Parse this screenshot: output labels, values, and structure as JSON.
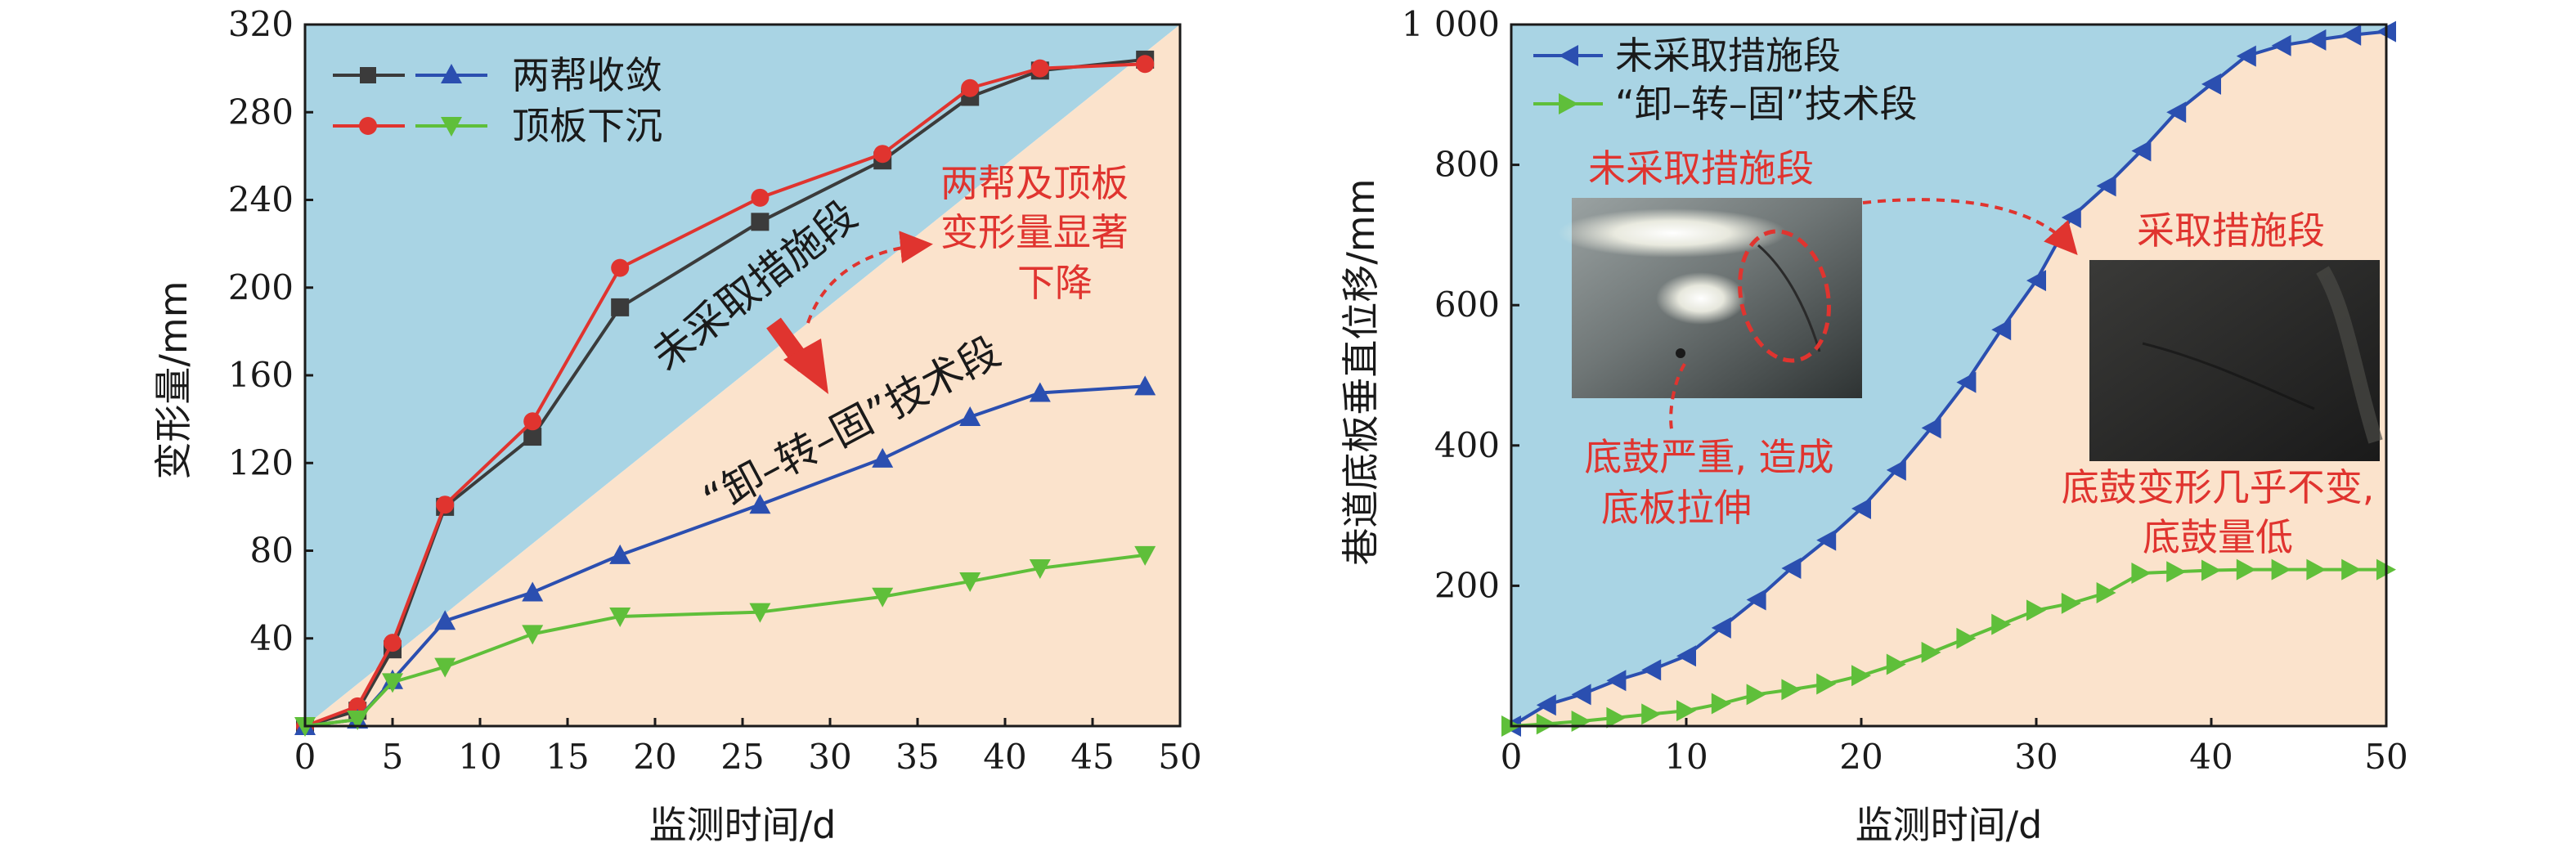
{
  "colors": {
    "blue_region": "#a9d4e4",
    "tan_region": "#fbe3cc",
    "series_dark": "#3b3b3b",
    "series_red": "#e0342f",
    "series_blue": "#2b4fb0",
    "series_green": "#5fbf3a",
    "annotation": "#e0342f",
    "arrow": "#e0342f"
  },
  "chart_data": [
    {
      "type": "line",
      "xlabel": "监测时间/d",
      "ylabel": "变形量/mm",
      "xlim": [
        0,
        50
      ],
      "ylim": [
        0,
        320
      ],
      "xticks": [
        "0",
        "5",
        "10",
        "15",
        "20",
        "25",
        "30",
        "35",
        "40",
        "45",
        "50"
      ],
      "yticks": [
        "40",
        "80",
        "120",
        "160",
        "200",
        "240",
        "280",
        "320"
      ],
      "legend": {
        "position": "top-left",
        "group_labels": [
          "两帮收敛",
          "顶板下沉"
        ]
      },
      "regions": [
        "未采取措施段",
        "“卸–转–固”技术段"
      ],
      "annotation": [
        "两帮及顶板",
        "变形量显著",
        "下降"
      ],
      "series": [
        {
          "marker": "square",
          "x": [
            0,
            3,
            5,
            8,
            13,
            18,
            26,
            33,
            38,
            42,
            48
          ],
          "y": [
            0,
            7,
            35,
            100,
            132,
            191,
            230,
            258,
            287,
            299,
            304
          ]
        },
        {
          "marker": "circle",
          "x": [
            0,
            3,
            5,
            8,
            13,
            18,
            26,
            33,
            38,
            42,
            48
          ],
          "y": [
            0,
            9,
            38,
            101,
            139,
            209,
            241,
            261,
            291,
            300,
            302
          ]
        },
        {
          "marker": "triangle-up",
          "x": [
            0,
            3,
            5,
            8,
            13,
            18,
            26,
            33,
            38,
            42,
            48
          ],
          "y": [
            0,
            3,
            21,
            48,
            61,
            78,
            101,
            122,
            141,
            152,
            155
          ]
        },
        {
          "marker": "triangle-down",
          "x": [
            0,
            3,
            5,
            8,
            13,
            18,
            26,
            33,
            38,
            42,
            48
          ],
          "y": [
            0,
            3,
            20,
            27,
            42,
            50,
            52,
            59,
            66,
            72,
            78
          ]
        }
      ]
    },
    {
      "type": "line",
      "xlabel": "监测时间/d",
      "ylabel": "巷道底板垂直位移/mm",
      "xlim": [
        0,
        50
      ],
      "ylim": [
        0,
        1000
      ],
      "xticks": [
        "0",
        "10",
        "20",
        "30",
        "40",
        "50"
      ],
      "yticks": [
        "200",
        "400",
        "600",
        "800",
        "1 000"
      ],
      "legend": {
        "position": "top-left"
      },
      "series": [
        {
          "name": "未采取措施段",
          "marker": "triangle-left",
          "x": [
            0,
            2,
            4,
            6,
            8,
            10,
            12,
            14,
            16,
            18,
            20,
            22,
            24,
            26,
            28,
            30,
            32,
            34,
            36,
            38,
            40,
            42,
            44,
            46,
            48,
            50
          ],
          "y": [
            0,
            30,
            45,
            65,
            80,
            100,
            140,
            180,
            225,
            265,
            310,
            365,
            425,
            490,
            565,
            635,
            725,
            770,
            820,
            875,
            915,
            955,
            970,
            978,
            985,
            990
          ]
        },
        {
          "name": "“卸–转–固”技术段",
          "marker": "triangle-right",
          "x": [
            0,
            2,
            4,
            6,
            8,
            10,
            12,
            14,
            16,
            18,
            20,
            22,
            24,
            26,
            28,
            30,
            32,
            34,
            36,
            38,
            40,
            42,
            44,
            46,
            48,
            50
          ],
          "y": [
            0,
            3,
            7,
            12,
            17,
            22,
            32,
            45,
            52,
            60,
            72,
            88,
            105,
            125,
            145,
            165,
            175,
            190,
            218,
            220,
            222,
            223,
            223,
            223,
            223,
            223
          ]
        }
      ],
      "photo_labels": {
        "left_title": "未采取措施段",
        "left_caption": [
          "底鼓严重, 造成",
          "底板拉伸"
        ],
        "right_title": "采取措施段",
        "right_caption": [
          "底鼓变形几乎不变,",
          "底鼓量低"
        ]
      }
    }
  ]
}
